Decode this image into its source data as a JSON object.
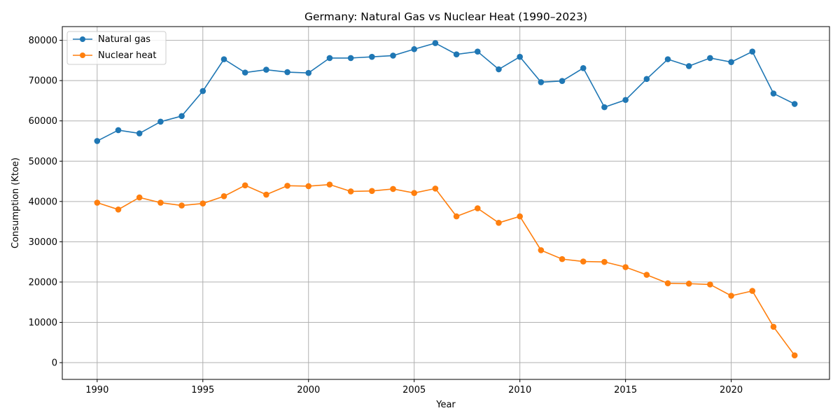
{
  "chart_data": {
    "type": "line",
    "title": "Germany: Natural Gas vs Nuclear Heat (1990–2023)",
    "xlabel": "Year",
    "ylabel": "Consumption (Ktoe)",
    "xlim": [
      1988.35,
      2024.65
    ],
    "ylim": [
      -4160,
      83400
    ],
    "xticks": [
      1990,
      1995,
      2000,
      2005,
      2010,
      2015,
      2020
    ],
    "yticks": [
      0,
      10000,
      20000,
      30000,
      40000,
      50000,
      60000,
      70000,
      80000
    ],
    "grid": true,
    "legend_position": "top-left",
    "x": [
      1990,
      1991,
      1992,
      1993,
      1994,
      1995,
      1996,
      1997,
      1998,
      1999,
      2000,
      2001,
      2002,
      2003,
      2004,
      2005,
      2006,
      2007,
      2008,
      2009,
      2010,
      2011,
      2012,
      2013,
      2014,
      2015,
      2016,
      2017,
      2018,
      2019,
      2020,
      2021,
      2022,
      2023
    ],
    "series": [
      {
        "name": "Natural gas",
        "color": "#1f77b4",
        "values": [
          55000,
          57700,
          56900,
          59800,
          61200,
          67400,
          75300,
          72000,
          72700,
          72100,
          71900,
          75600,
          75600,
          75900,
          76200,
          77800,
          79300,
          76500,
          77200,
          72800,
          75900,
          69600,
          69900,
          73100,
          63400,
          65200,
          70400,
          75300,
          73600,
          75600,
          74600,
          77200,
          66800,
          64200
        ]
      },
      {
        "name": "Nuclear heat",
        "color": "#ff7f0e",
        "values": [
          39700,
          38000,
          41000,
          39700,
          39000,
          39500,
          41300,
          44000,
          41700,
          43900,
          43800,
          44200,
          42500,
          42600,
          43100,
          42100,
          43200,
          36300,
          38300,
          34700,
          36300,
          27900,
          25700,
          25100,
          25000,
          23700,
          21800,
          19700,
          19600,
          19400,
          16600,
          17800,
          8900,
          1800
        ]
      }
    ]
  }
}
